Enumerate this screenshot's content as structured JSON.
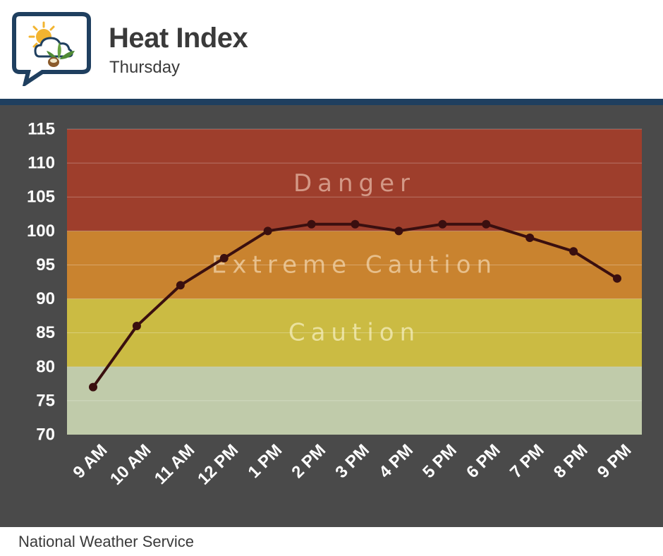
{
  "header": {
    "title": "Heat Index",
    "subtitle": "Thursday",
    "logo_icon": "sun-cloud-plant-icon"
  },
  "footer": {
    "source": "National Weather Service"
  },
  "colors": {
    "header_bar": "#1f3f5f",
    "chart_background": "#4a4a4a",
    "danger": "#9e3e2c",
    "extreme_caution": "#c9832f",
    "caution": "#cbbb43",
    "normal": "#c0cbaa",
    "line": "#3a0f0f"
  },
  "chart_data": {
    "type": "line",
    "title": "Heat Index",
    "subtitle": "Thursday",
    "categories": [
      "9 AM",
      "10 AM",
      "11 AM",
      "12 PM",
      "1 PM",
      "2 PM",
      "3 PM",
      "4 PM",
      "5 PM",
      "6 PM",
      "7 PM",
      "8 PM",
      "9 PM"
    ],
    "series": [
      {
        "values": [
          77,
          86,
          92,
          96,
          100,
          101,
          101,
          100,
          101,
          101,
          99,
          97,
          93
        ]
      }
    ],
    "ylim": [
      70,
      115
    ],
    "yticks": [
      70,
      75,
      80,
      85,
      90,
      95,
      100,
      105,
      110,
      115
    ],
    "grid": true,
    "bands": [
      {
        "label": "",
        "from": 70,
        "to": 80,
        "color": "#c0cbaa"
      },
      {
        "label": "Caution",
        "from": 80,
        "to": 90,
        "color": "#cbbb43"
      },
      {
        "label": "Extreme Caution",
        "from": 90,
        "to": 100,
        "color": "#c9832f"
      },
      {
        "label": "Danger",
        "from": 100,
        "to": 115,
        "color": "#9e3e2c"
      }
    ]
  }
}
